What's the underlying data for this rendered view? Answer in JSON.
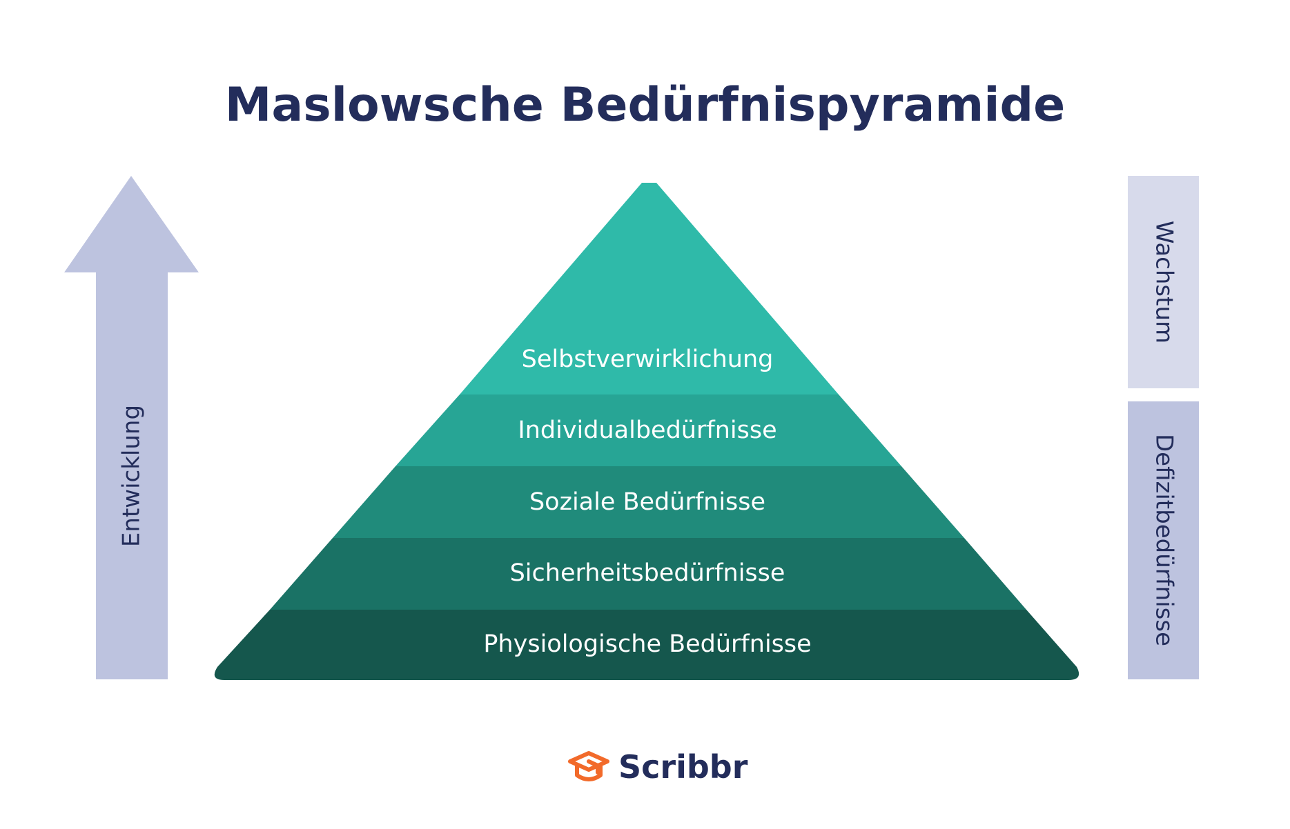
{
  "title": "Maslowsche Bedürfnispyramide",
  "pyramid": {
    "levels": [
      {
        "label": "Selbstverwirklichung",
        "color": "#2fbaa9"
      },
      {
        "label": "Individualbedürfnisse",
        "color": "#27a595"
      },
      {
        "label": "Soziale Bedürfnisse",
        "color": "#208b7b"
      },
      {
        "label": "Sicherheitsbedürfnisse",
        "color": "#1a7265"
      },
      {
        "label": "Physiologische Bedürfnisse",
        "color": "#15574d"
      }
    ],
    "label_color": "#ffffff"
  },
  "arrow": {
    "label": "Entwicklung",
    "color": "#bdc3df",
    "icon": "arrow-up-icon"
  },
  "side_bars": [
    {
      "label": "Wachstum",
      "color": "#d7daeb"
    },
    {
      "label": "Defizitbedürfnisse",
      "color": "#bdc3df"
    }
  ],
  "brand": {
    "name": "Scribbr",
    "icon": "graduation-cap-icon",
    "icon_color": "#f26a2a"
  },
  "colors": {
    "text_dark": "#232d5b",
    "background": "#ffffff"
  }
}
